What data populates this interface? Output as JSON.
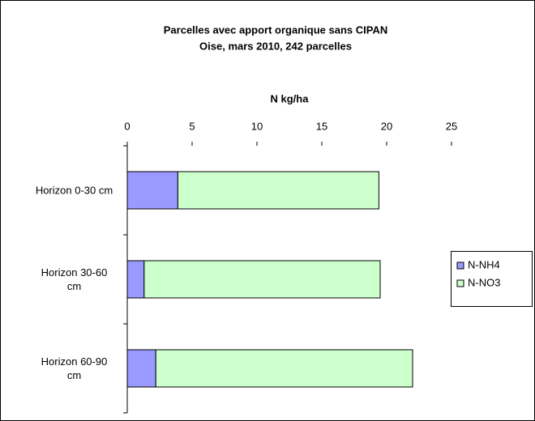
{
  "chart_data": {
    "type": "stacked-barh",
    "title": "Parcelles avec apport organique sans CIPAN",
    "subtitle": "Oise, mars 2010,  242 parcelles",
    "x_label": "N kg/ha",
    "categories": [
      "Horizon 0-30 cm",
      "Horizon 30-60 cm",
      "Horizon 60-90 cm"
    ],
    "series": [
      {
        "name": "N-NH4",
        "color": "#9999ff",
        "values": [
          3.9,
          1.3,
          2.2
        ]
      },
      {
        "name": "N-NO3",
        "color": "#ccffcc",
        "values": [
          15.5,
          18.2,
          19.8
        ]
      }
    ],
    "xlim": [
      0,
      25
    ],
    "xticks": [
      0,
      5,
      10,
      15,
      20,
      25
    ],
    "legend": "right"
  }
}
